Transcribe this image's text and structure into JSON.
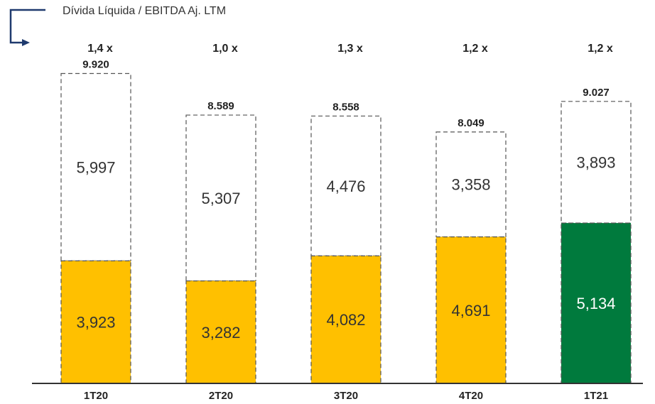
{
  "chart_data": {
    "type": "bar",
    "title": "Dívida Líquida / EBITDA Aj. LTM",
    "categories": [
      "1T20",
      "2T20",
      "3T20",
      "4T20",
      "1T21"
    ],
    "ratios": [
      "1,4 x",
      "1,0 x",
      "1,3 x",
      "1,2 x",
      "1,2 x"
    ],
    "totals": [
      9920,
      8589,
      8558,
      8049,
      9027
    ],
    "total_labels": [
      "9.920",
      "8.589",
      "8.558",
      "8.049",
      "9.027"
    ],
    "series": [
      {
        "values": [
          3923,
          3282,
          4082,
          4691,
          5134
        ],
        "labels": [
          "3,923",
          "3,282",
          "4,082",
          "4,691",
          "5,134"
        ]
      },
      {
        "values": [
          5997,
          5307,
          4476,
          3358,
          3893
        ],
        "labels": [
          "5,997",
          "5,307",
          "4,476",
          "3,358",
          "3,893"
        ]
      }
    ],
    "colors": {
      "bottom": "#FFC000",
      "bottom_highlight": "#007A3D",
      "top_fill": "#FFFFFF",
      "outline": "#555555",
      "axis": "#333333",
      "legend_arrow": "#1F3A6E"
    },
    "highlight_index": 4,
    "ylim": [
      0,
      10500
    ]
  }
}
